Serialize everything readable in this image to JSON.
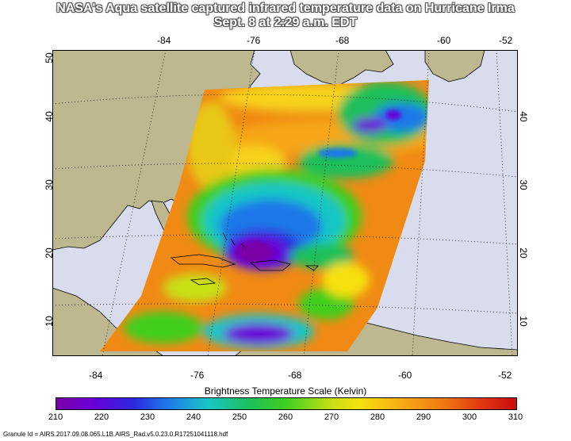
{
  "title_line1": "NASA's Aqua satellite captured infrared temperature data on Hurricane Irma",
  "title_line2": "Sept. 8 at 2:29 a.m. EDT",
  "lon_ticks": [
    "-84",
    "-76",
    "-68",
    "-60",
    "-52"
  ],
  "lat_ticks": [
    "50",
    "40",
    "30",
    "20",
    "10"
  ],
  "colorbar": {
    "title": "Brightness Temperature Scale (Kelvin)",
    "ticks": [
      "210",
      "220",
      "230",
      "240",
      "250",
      "260",
      "270",
      "280",
      "290",
      "300",
      "310"
    ]
  },
  "granule": "Granule Id = AIRS.2017.09.08.065.L1B.AIRS_Rad.v5.0.23.0.R17251041118.hdf",
  "colors": {
    "ocean": "#d9dcec",
    "land": "#bdb890",
    "cold": "#6a00d8",
    "warm": "#f07a12"
  }
}
